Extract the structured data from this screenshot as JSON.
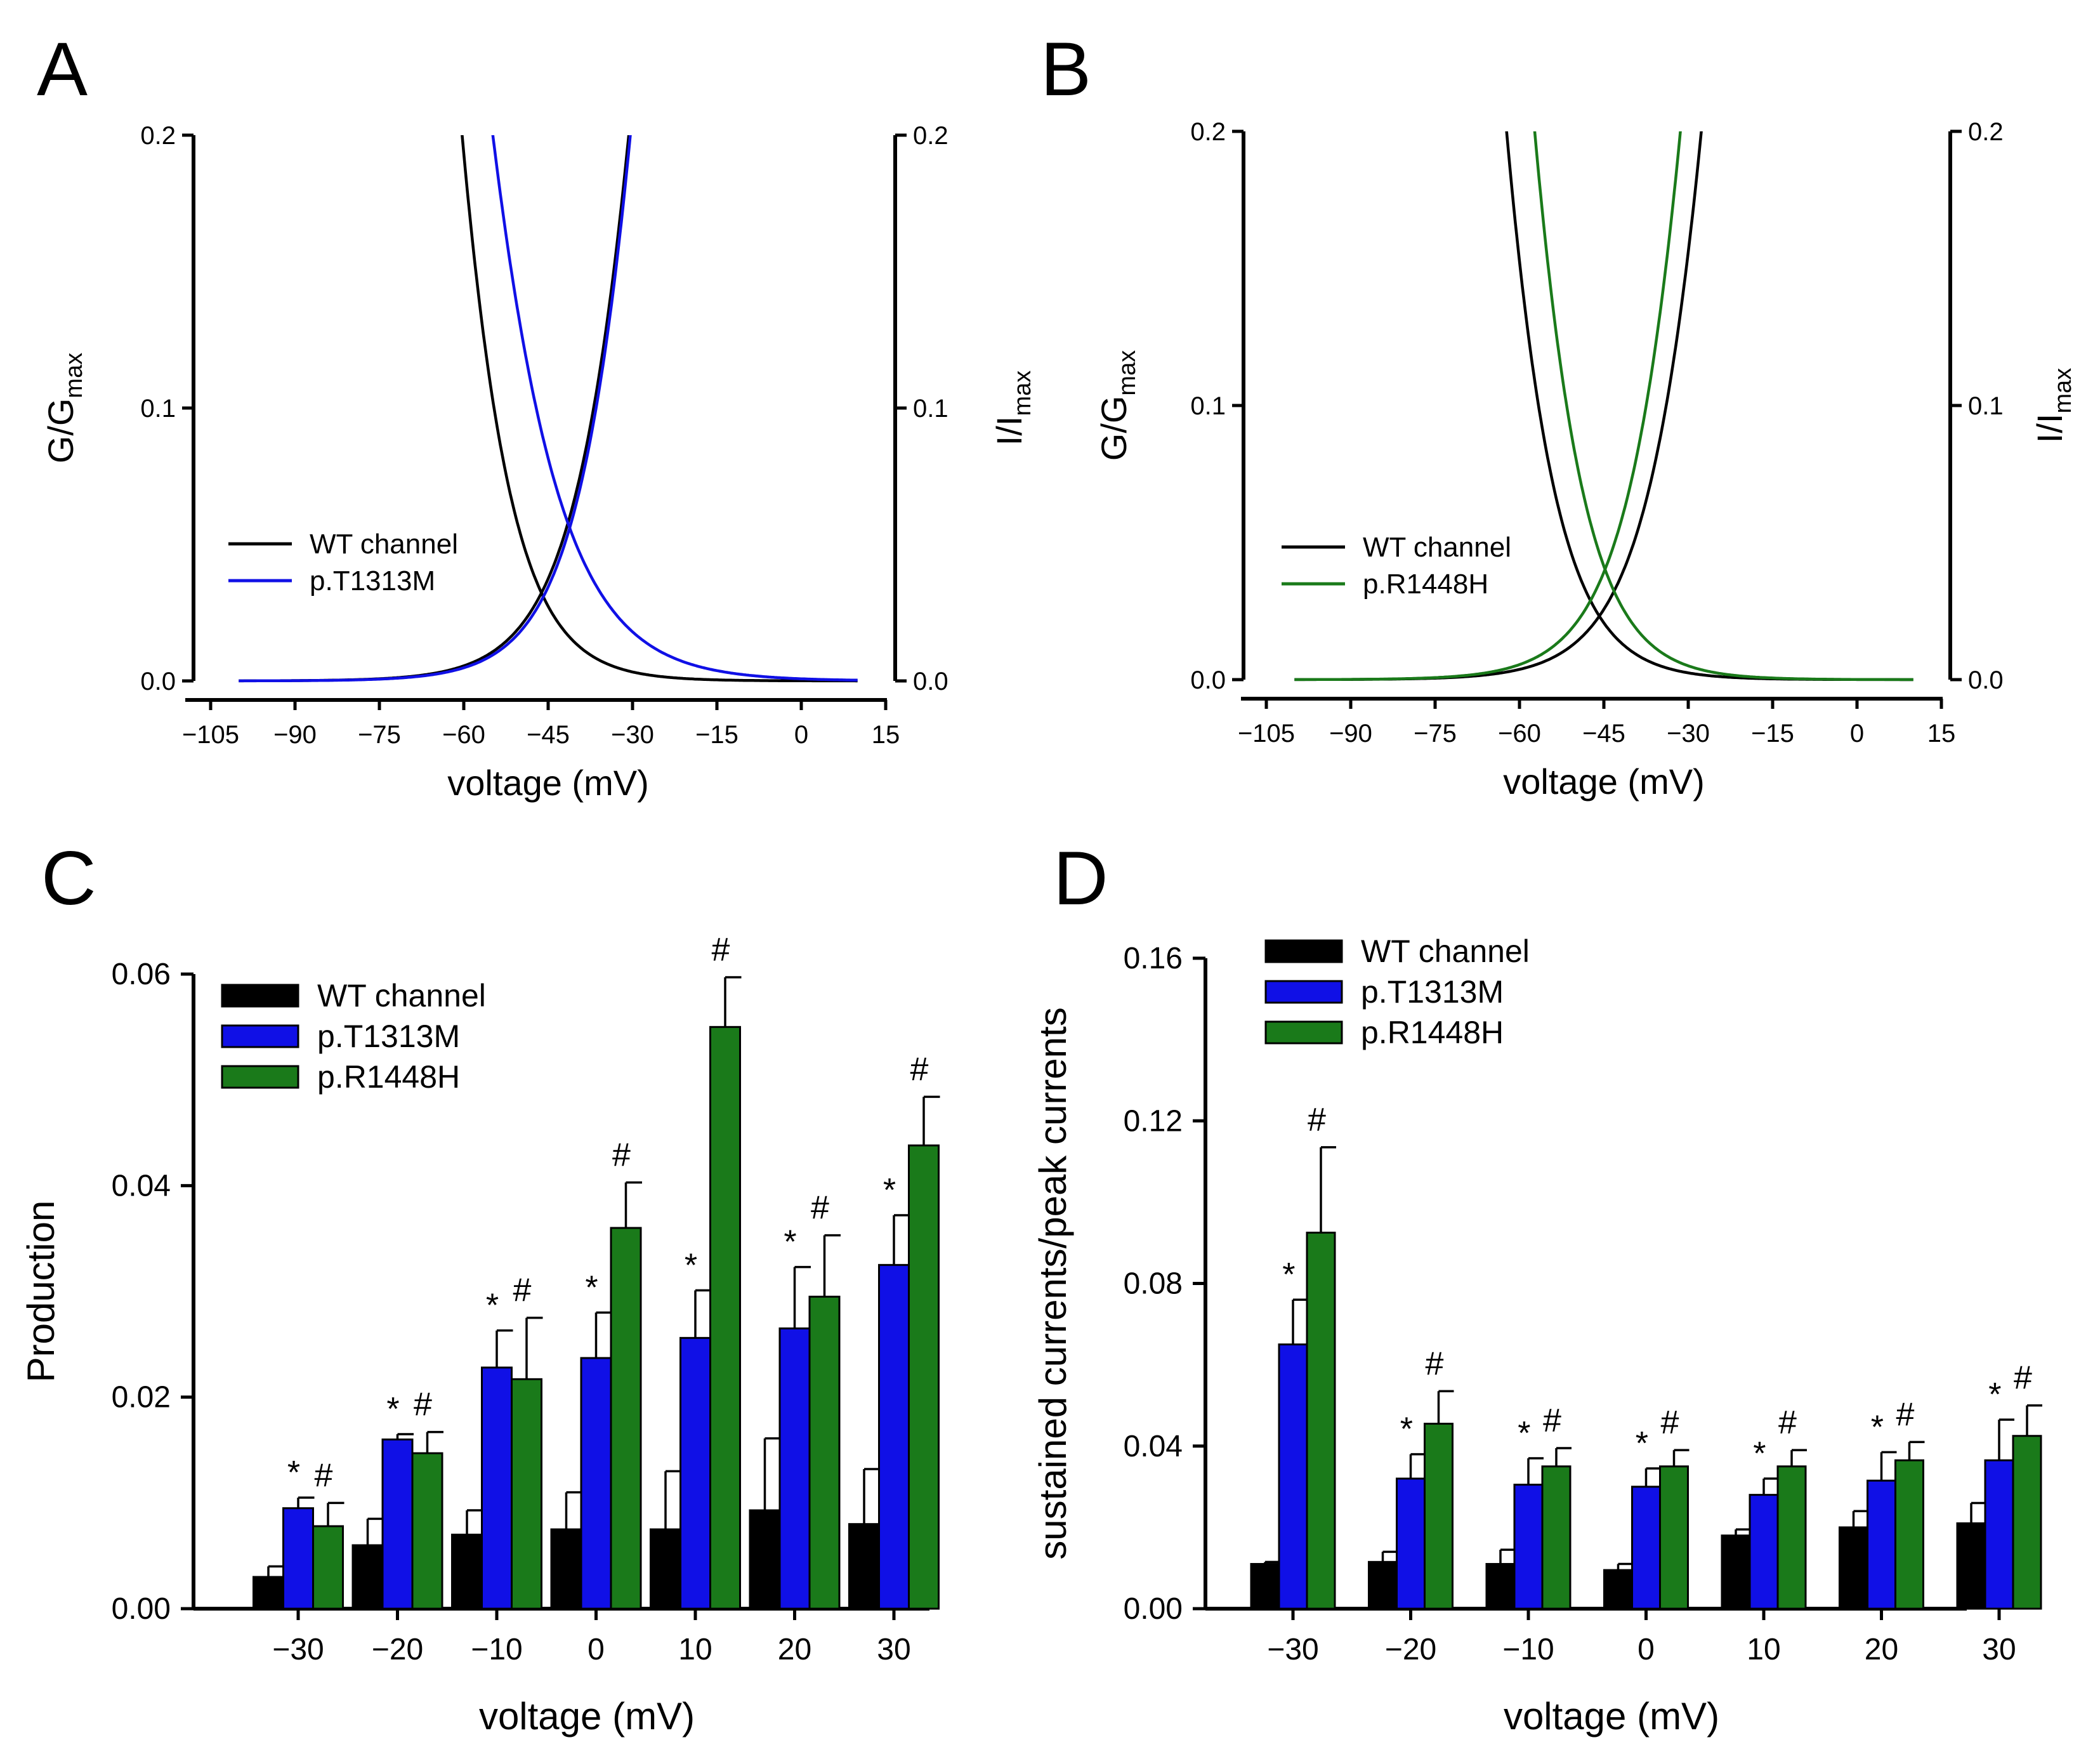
{
  "panels": {
    "A": {
      "label": "A"
    },
    "B": {
      "label": "B"
    },
    "C": {
      "label": "C"
    },
    "D": {
      "label": "D"
    }
  },
  "colors": {
    "wt": "#000000",
    "t1313m": "#1010e6",
    "r1448h": "#1a7a1a"
  },
  "chart_data": [
    {
      "id": "A",
      "type": "line",
      "xlabel": "voltage (mV)",
      "ylabel_left": "G/G",
      "ylabel_left_sub": "max",
      "ylabel_right": "I/I",
      "ylabel_right_sub": "max",
      "xlim": [
        -105,
        15
      ],
      "ylim": [
        0,
        0.2
      ],
      "x_ticks": [
        "−105",
        "−90",
        "−75",
        "−60",
        "−45",
        "−30",
        "−15",
        "0",
        "15"
      ],
      "y_ticks": [
        "0.0",
        "0.1",
        "0.2"
      ],
      "legend": [
        "WT channel",
        "p.T1313M"
      ],
      "series": [
        {
          "name": "WT channel",
          "color": "#000000",
          "activation": {
            "v_half": -20,
            "k": 7.7
          },
          "inactivation": {
            "v_half": -70,
            "k": 7.0
          }
        },
        {
          "name": "p.T1313M",
          "color": "#1010e6",
          "activation": {
            "v_half": -20,
            "k": 7.5
          },
          "inactivation": {
            "v_half": -68,
            "k": 9.5
          }
        }
      ],
      "x_range": [
        -100,
        10
      ]
    },
    {
      "id": "B",
      "type": "line",
      "xlabel": "voltage (mV)",
      "ylabel_left": "G/G",
      "ylabel_left_sub": "max",
      "ylabel_right": "I/I",
      "ylabel_right_sub": "max",
      "xlim": [
        -105,
        15
      ],
      "ylim": [
        0,
        0.2
      ],
      "x_ticks": [
        "−105",
        "−90",
        "−75",
        "−60",
        "−45",
        "−30",
        "−15",
        "0",
        "15"
      ],
      "y_ticks": [
        "0.0",
        "0.1",
        "0.2"
      ],
      "legend": [
        "WT channel",
        "p.R1448H"
      ],
      "series": [
        {
          "name": "WT channel",
          "color": "#000000",
          "activation": {
            "v_half": -17,
            "k": 7.7
          },
          "inactivation": {
            "v_half": -72,
            "k": 7.0
          }
        },
        {
          "name": "p.R1448H",
          "color": "#1a7a1a",
          "activation": {
            "v_half": -21,
            "k": 7.5
          },
          "inactivation": {
            "v_half": -67,
            "k": 7.0
          }
        }
      ],
      "x_range": [
        -100,
        10
      ]
    },
    {
      "id": "C",
      "type": "bar",
      "xlabel": "voltage (mV)",
      "ylabel": "Production",
      "ylim": [
        0,
        0.06
      ],
      "y_ticks": [
        "0.00",
        "0.02",
        "0.04",
        "0.06"
      ],
      "categories": [
        "−30",
        "−20",
        "−10",
        "0",
        "10",
        "20",
        "30"
      ],
      "series": [
        {
          "name": "WT channel",
          "color": "#000000",
          "values": [
            0.003,
            0.006,
            0.007,
            0.0075,
            0.0075,
            0.0093,
            0.008
          ],
          "errors": [
            0.001,
            0.0025,
            0.0023,
            0.0035,
            0.0055,
            0.0068,
            0.0052
          ],
          "marks": [
            "",
            "",
            "",
            "",
            "",
            "",
            ""
          ]
        },
        {
          "name": "p.T1313M",
          "color": "#1010e6",
          "values": [
            0.0095,
            0.016,
            0.0228,
            0.0237,
            0.0256,
            0.0265,
            0.0325
          ],
          "errors": [
            0.001,
            0.0005,
            0.0035,
            0.0043,
            0.0045,
            0.0058,
            0.0047
          ],
          "marks": [
            "*",
            "*",
            "*",
            "*",
            "*",
            "*",
            "*"
          ]
        },
        {
          "name": "p.R1448H",
          "color": "#1a7a1a",
          "values": [
            0.0078,
            0.0147,
            0.0217,
            0.036,
            0.055,
            0.0295,
            0.0438
          ],
          "errors": [
            0.0022,
            0.002,
            0.0058,
            0.0043,
            0.0047,
            0.0058,
            0.0046
          ],
          "marks": [
            "#",
            "#",
            "#",
            "#",
            "#",
            "#",
            "#"
          ]
        }
      ]
    },
    {
      "id": "D",
      "type": "bar",
      "xlabel": "voltage (mV)",
      "ylabel": "sustained currents/peak currents",
      "ylim": [
        0,
        0.16
      ],
      "y_ticks": [
        "0.00",
        "0.04",
        "0.08",
        "0.12",
        "0.16"
      ],
      "categories": [
        "−30",
        "−20",
        "−10",
        "0",
        "10",
        "20",
        "30"
      ],
      "series": [
        {
          "name": "WT channel",
          "color": "#000000",
          "values": [
            0.011,
            0.0115,
            0.011,
            0.0095,
            0.018,
            0.02,
            0.021
          ],
          "errors": [
            0.0005,
            0.0025,
            0.0035,
            0.0015,
            0.0015,
            0.004,
            0.005
          ],
          "marks": [
            "",
            "",
            "",
            "",
            "",
            "",
            ""
          ]
        },
        {
          "name": "p.T1313M",
          "color": "#1010e6",
          "values": [
            0.065,
            0.032,
            0.0305,
            0.03,
            0.028,
            0.0315,
            0.0365
          ],
          "errors": [
            0.011,
            0.006,
            0.0065,
            0.0045,
            0.004,
            0.007,
            0.01
          ],
          "marks": [
            "*",
            "*",
            "*",
            "*",
            "*",
            "*",
            "*"
          ]
        },
        {
          "name": "p.R1448H",
          "color": "#1a7a1a",
          "values": [
            0.0925,
            0.0455,
            0.035,
            0.035,
            0.035,
            0.0365,
            0.0425
          ],
          "errors": [
            0.021,
            0.008,
            0.0045,
            0.004,
            0.004,
            0.0045,
            0.0075
          ],
          "marks": [
            "#",
            "#",
            "#",
            "#",
            "#",
            "#",
            "#"
          ]
        }
      ]
    }
  ]
}
